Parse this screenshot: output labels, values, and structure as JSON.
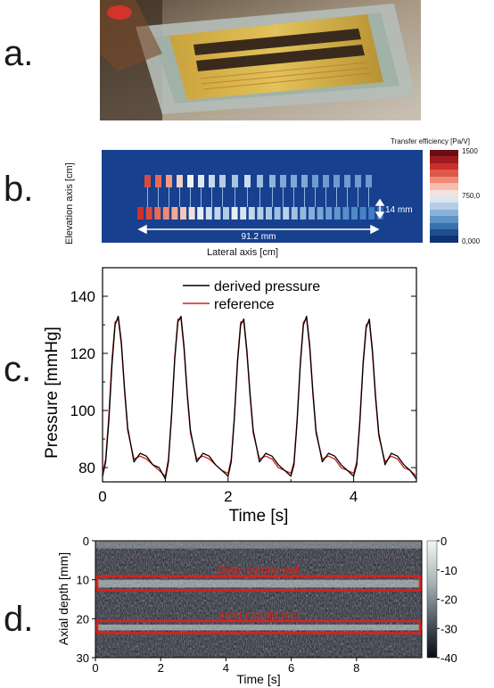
{
  "panels": {
    "a": {
      "label": "a."
    },
    "b": {
      "label": "b.",
      "ylabel": "Elevation axis [cm]",
      "xlabel": "Lateral axis [cm]",
      "dimension_width": "91.2 mm",
      "dimension_height": "14 mm",
      "colorbar_title": "Transfer efficiency [Pa/V]",
      "colorbar_ticks": [
        "1500",
        "750,0",
        "0,000"
      ],
      "colorbar_colors": [
        "#6b0d14",
        "#9e1a1f",
        "#c8302c",
        "#e0584a",
        "#ef8a75",
        "#f7bcab",
        "#f4e2dd",
        "#dbe6f1",
        "#b5cde6",
        "#88b2d8",
        "#5d93c6",
        "#3672b0",
        "#1e4f91",
        "#0f3473"
      ]
    },
    "c": {
      "label": "c."
    },
    "d": {
      "label": "d."
    }
  },
  "chart_data": [
    {
      "type": "line",
      "xlabel": "Time [s]",
      "ylabel": "Pressure [mmHg]",
      "xlim": [
        0,
        5
      ],
      "ylim": [
        75,
        150
      ],
      "xticks": [
        "0",
        "2",
        "4"
      ],
      "yticks": [
        "80",
        "100",
        "120",
        "140"
      ],
      "legend_position": "top-center",
      "series": [
        {
          "name": "derived pressure",
          "color": "#000000",
          "x": [
            0,
            0.05,
            0.1,
            0.15,
            0.2,
            0.25,
            0.3,
            0.35,
            0.4,
            0.5,
            0.6,
            0.7,
            0.8,
            0.9,
            1.0,
            1.05,
            1.1,
            1.15,
            1.2,
            1.25,
            1.3,
            1.35,
            1.4,
            1.5,
            1.6,
            1.7,
            1.8,
            1.9,
            2.0,
            2.05,
            2.1,
            2.15,
            2.2,
            2.25,
            2.3,
            2.35,
            2.4,
            2.5,
            2.6,
            2.7,
            2.8,
            2.9,
            3.0,
            3.05,
            3.1,
            3.15,
            3.2,
            3.25,
            3.3,
            3.35,
            3.4,
            3.5,
            3.6,
            3.7,
            3.8,
            3.9,
            4.0,
            4.05,
            4.1,
            4.15,
            4.2,
            4.25,
            4.3,
            4.35,
            4.4,
            4.5,
            4.6,
            4.7,
            4.8,
            4.9,
            5.0
          ],
          "y": [
            77,
            82,
            96,
            116,
            130,
            133,
            124,
            108,
            94,
            82,
            85,
            84,
            81,
            80,
            76,
            82,
            98,
            118,
            131,
            133,
            122,
            106,
            93,
            82,
            85,
            84,
            81,
            79,
            77,
            82,
            97,
            117,
            130,
            132,
            121,
            106,
            93,
            82,
            85,
            84,
            81,
            79,
            77,
            81,
            96,
            116,
            130,
            133,
            123,
            107,
            93,
            82,
            85,
            84,
            81,
            79,
            77,
            81,
            96,
            116,
            129,
            132,
            121,
            105,
            92,
            81,
            85,
            84,
            81,
            79,
            76
          ]
        },
        {
          "name": "reference",
          "color": "#d0201a",
          "x": [
            0,
            0.05,
            0.1,
            0.15,
            0.2,
            0.25,
            0.3,
            0.35,
            0.4,
            0.5,
            0.6,
            0.7,
            0.8,
            0.9,
            1.0,
            1.05,
            1.1,
            1.15,
            1.2,
            1.25,
            1.3,
            1.35,
            1.4,
            1.5,
            1.6,
            1.7,
            1.8,
            1.9,
            2.0,
            2.05,
            2.1,
            2.15,
            2.2,
            2.25,
            2.3,
            2.35,
            2.4,
            2.5,
            2.6,
            2.7,
            2.8,
            2.9,
            3.0,
            3.05,
            3.1,
            3.15,
            3.2,
            3.25,
            3.3,
            3.35,
            3.4,
            3.5,
            3.6,
            3.7,
            3.8,
            3.9,
            4.0,
            4.05,
            4.1,
            4.15,
            4.2,
            4.25,
            4.3,
            4.35,
            4.4,
            4.5,
            4.6,
            4.7,
            4.8,
            4.9,
            5.0
          ],
          "y": [
            78,
            83,
            98,
            118,
            131,
            132,
            123,
            107,
            93,
            83,
            84,
            83,
            81,
            79,
            77,
            83,
            99,
            119,
            132,
            132,
            121,
            105,
            92,
            83,
            84,
            83,
            81,
            79,
            78,
            83,
            98,
            118,
            131,
            131,
            120,
            105,
            92,
            83,
            84,
            83,
            80,
            79,
            78,
            82,
            97,
            117,
            131,
            132,
            122,
            106,
            92,
            83,
            84,
            83,
            80,
            79,
            78,
            82,
            97,
            117,
            130,
            131,
            120,
            104,
            91,
            82,
            84,
            83,
            80,
            79,
            77
          ]
        }
      ]
    },
    {
      "type": "heatmap",
      "xlabel": "Time [s]",
      "ylabel": "Axial depth [mm]",
      "xlim": [
        0,
        10
      ],
      "ylim": [
        30,
        0
      ],
      "xticks": [
        "0",
        "2",
        "4",
        "6",
        "8"
      ],
      "yticks": [
        "0",
        "10",
        "20",
        "30"
      ],
      "colorbar_ticks": [
        "0",
        "-10",
        "-20",
        "-30",
        "-40"
      ],
      "colorbar_range": [
        -40,
        0
      ],
      "annotations": [
        {
          "text": "Outer carotid wall",
          "depth_range": [
            10,
            12
          ],
          "color": "#e0201a"
        },
        {
          "text": "Inner carotid wall",
          "depth_range": [
            21.5,
            23
          ],
          "color": "#e0201a"
        }
      ]
    }
  ]
}
